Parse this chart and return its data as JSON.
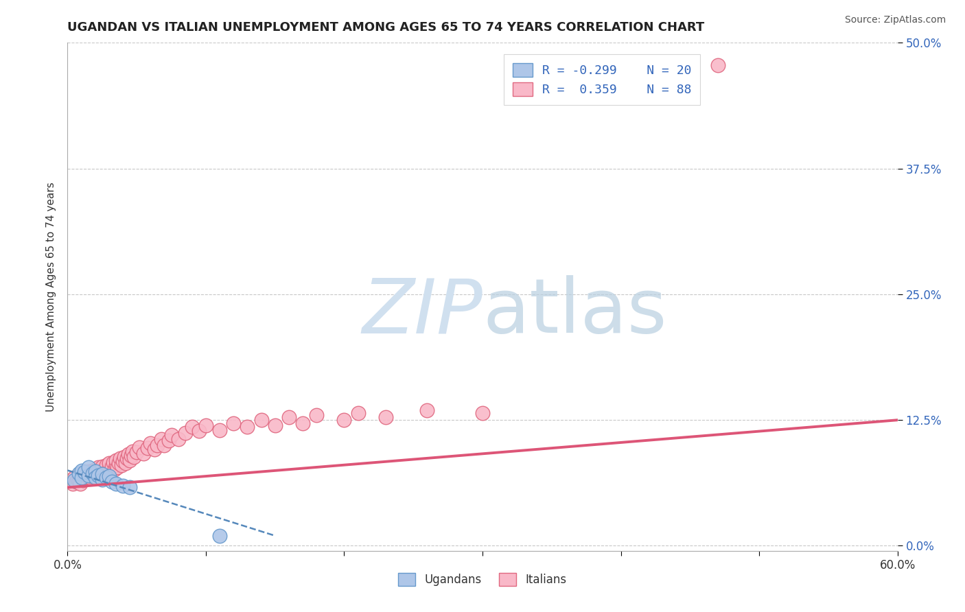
{
  "title": "UGANDAN VS ITALIAN UNEMPLOYMENT AMONG AGES 65 TO 74 YEARS CORRELATION CHART",
  "source": "Source: ZipAtlas.com",
  "ylabel": "Unemployment Among Ages 65 to 74 years",
  "xlim": [
    0.0,
    0.6
  ],
  "ylim": [
    -0.005,
    0.5
  ],
  "xticks": [
    0.0,
    0.1,
    0.2,
    0.3,
    0.4,
    0.5,
    0.6
  ],
  "yticks": [
    0.0,
    0.125,
    0.25,
    0.375,
    0.5
  ],
  "ytick_labels": [
    "0.0%",
    "12.5%",
    "25.0%",
    "37.5%",
    "50.0%"
  ],
  "xtick_labels": [
    "0.0%",
    "",
    "",
    "",
    "",
    "",
    "60.0%"
  ],
  "ugandan_color": "#aec6e8",
  "ugandan_edge": "#6699cc",
  "italian_color": "#f9b8c8",
  "italian_edge": "#e06880",
  "ugandan_trend_color": "#5588bb",
  "italian_trend_color": "#dd5577",
  "background_color": "#ffffff",
  "grid_color": "#c8c8c8",
  "watermark_color": "#d0e0ef",
  "legend_text_color": "#3366bb",
  "ugandan_x": [
    0.005,
    0.008,
    0.01,
    0.01,
    0.012,
    0.015,
    0.015,
    0.018,
    0.02,
    0.02,
    0.022,
    0.025,
    0.025,
    0.028,
    0.03,
    0.032,
    0.035,
    0.04,
    0.045,
    0.11
  ],
  "ugandan_y": [
    0.065,
    0.072,
    0.075,
    0.068,
    0.073,
    0.07,
    0.078,
    0.072,
    0.074,
    0.068,
    0.07,
    0.066,
    0.071,
    0.068,
    0.069,
    0.064,
    0.062,
    0.06,
    0.058,
    0.01
  ],
  "italian_x": [
    0.002,
    0.004,
    0.005,
    0.006,
    0.007,
    0.008,
    0.008,
    0.009,
    0.01,
    0.01,
    0.011,
    0.012,
    0.012,
    0.013,
    0.014,
    0.015,
    0.015,
    0.016,
    0.016,
    0.017,
    0.018,
    0.018,
    0.019,
    0.02,
    0.02,
    0.021,
    0.022,
    0.022,
    0.023,
    0.024,
    0.025,
    0.025,
    0.026,
    0.027,
    0.028,
    0.028,
    0.029,
    0.03,
    0.03,
    0.031,
    0.032,
    0.033,
    0.034,
    0.035,
    0.035,
    0.036,
    0.037,
    0.038,
    0.039,
    0.04,
    0.041,
    0.042,
    0.043,
    0.044,
    0.045,
    0.046,
    0.047,
    0.048,
    0.05,
    0.052,
    0.055,
    0.058,
    0.06,
    0.063,
    0.065,
    0.068,
    0.07,
    0.073,
    0.075,
    0.08,
    0.085,
    0.09,
    0.095,
    0.1,
    0.11,
    0.12,
    0.13,
    0.14,
    0.15,
    0.16,
    0.17,
    0.18,
    0.2,
    0.21,
    0.23,
    0.26,
    0.3,
    0.47
  ],
  "italian_y": [
    0.065,
    0.062,
    0.068,
    0.064,
    0.066,
    0.065,
    0.07,
    0.062,
    0.068,
    0.072,
    0.065,
    0.071,
    0.068,
    0.073,
    0.069,
    0.07,
    0.074,
    0.068,
    0.072,
    0.069,
    0.073,
    0.075,
    0.07,
    0.072,
    0.076,
    0.068,
    0.074,
    0.078,
    0.071,
    0.075,
    0.073,
    0.079,
    0.072,
    0.076,
    0.074,
    0.08,
    0.073,
    0.077,
    0.082,
    0.075,
    0.079,
    0.083,
    0.076,
    0.08,
    0.085,
    0.078,
    0.082,
    0.087,
    0.08,
    0.084,
    0.088,
    0.082,
    0.087,
    0.091,
    0.085,
    0.09,
    0.094,
    0.088,
    0.093,
    0.098,
    0.092,
    0.097,
    0.102,
    0.096,
    0.1,
    0.106,
    0.1,
    0.105,
    0.11,
    0.106,
    0.112,
    0.118,
    0.114,
    0.12,
    0.115,
    0.122,
    0.118,
    0.125,
    0.12,
    0.128,
    0.122,
    0.13,
    0.125,
    0.132,
    0.128,
    0.135,
    0.132,
    0.478
  ],
  "italian_trend_x": [
    0.0,
    0.6
  ],
  "italian_trend_y": [
    0.058,
    0.125
  ],
  "ugandan_trend_x": [
    0.0,
    0.15
  ],
  "ugandan_trend_y": [
    0.075,
    0.01
  ]
}
